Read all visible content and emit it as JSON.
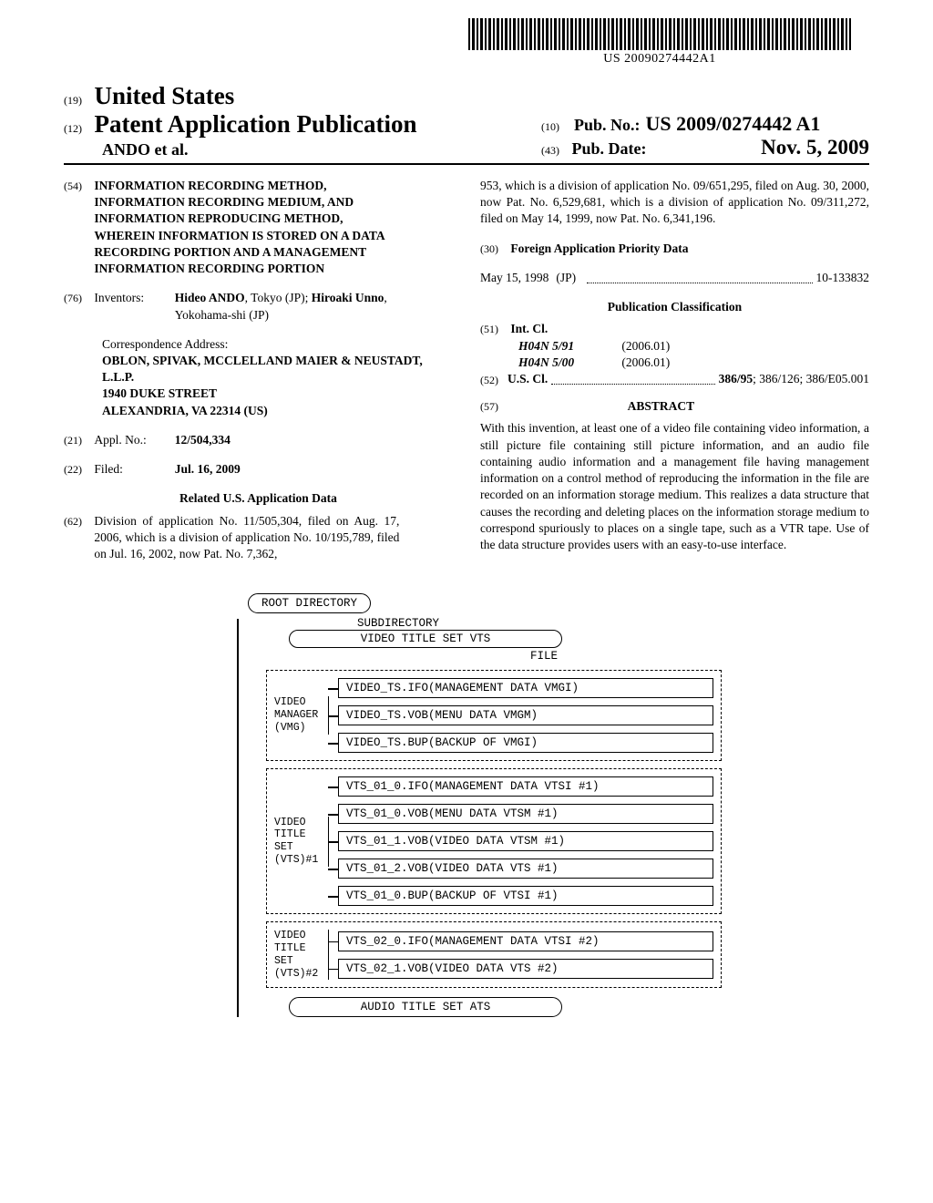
{
  "barcode_number": "US 20090274442A1",
  "header": {
    "code19": "(19)",
    "country": "United States",
    "code12": "(12)",
    "pub_title": "Patent Application Publication",
    "authors": "ANDO et al.",
    "code10": "(10)",
    "pubno_label": "Pub. No.:",
    "pubno": "US 2009/0274442 A1",
    "code43": "(43)",
    "pubdate_label": "Pub. Date:",
    "pubdate": "Nov. 5, 2009"
  },
  "left": {
    "code54": "(54)",
    "title": "INFORMATION RECORDING METHOD, INFORMATION RECORDING MEDIUM, AND INFORMATION REPRODUCING METHOD, WHEREIN INFORMATION IS STORED ON A DATA RECORDING PORTION AND A MANAGEMENT INFORMATION RECORDING PORTION",
    "code76": "(76)",
    "inventors_label": "Inventors:",
    "inventors": "Hideo ANDO, Tokyo (JP); Hiroaki Unno, Yokohama-shi (JP)",
    "corr_label": "Correspondence Address:",
    "corr1": "OBLON, SPIVAK, MCCLELLAND MAIER & NEUSTADT, L.L.P.",
    "corr2": "1940 DUKE STREET",
    "corr3": "ALEXANDRIA, VA 22314 (US)",
    "code21": "(21)",
    "applno_label": "Appl. No.:",
    "applno": "12/504,334",
    "code22": "(22)",
    "filed_label": "Filed:",
    "filed": "Jul. 16, 2009",
    "related_heading": "Related U.S. Application Data",
    "code62": "(62)",
    "related_text": "Division of application No. 11/505,304, filed on Aug. 17, 2006, which is a division of application No. 10/195,789, filed on Jul. 16, 2002, now Pat. No. 7,362,"
  },
  "right": {
    "cont_text": "953, which is a division of application No. 09/651,295, filed on Aug. 30, 2000, now Pat. No. 6,529,681, which is a division of application No. 09/311,272, filed on May 14, 1999, now Pat. No. 6,341,196.",
    "code30": "(30)",
    "foreign_heading": "Foreign Application Priority Data",
    "foreign_date": "May 15, 1998",
    "foreign_country": "(JP)",
    "foreign_num": "10-133832",
    "pubclass_heading": "Publication Classification",
    "code51": "(51)",
    "intcl_label": "Int. Cl.",
    "intcl1": "H04N 5/91",
    "intcl1_ver": "(2006.01)",
    "intcl2": "H04N 5/00",
    "intcl2_ver": "(2006.01)",
    "code52": "(52)",
    "uscl_label": "U.S. Cl.",
    "uscl_val": "386/95; 386/126; 386/E05.001",
    "code57": "(57)",
    "abstract_heading": "ABSTRACT",
    "abstract_text": "With this invention, at least one of a video file containing video information, a still picture file containing still picture information, and an audio file containing audio information and a management file having management information on a control method of reproducing the information in the file are recorded on an information storage medium. This realizes a data structure that causes the recording and deleting places on the information storage medium to correspond spuriously to places on a single tape, such as a VTR tape. Use of the data structure provides users with an easy-to-use interface."
  },
  "diagram": {
    "root": "ROOT DIRECTORY",
    "subdir_label": "SUBDIRECTORY",
    "vts_box": "VIDEO TITLE SET VTS",
    "file_label": "FILE",
    "groups": [
      {
        "label": "VIDEO\nMANAGER\n(VMG)",
        "files": [
          "VIDEO_TS.IFO(MANAGEMENT DATA VMGI)",
          "VIDEO_TS.VOB(MENU DATA VMGM)",
          "VIDEO_TS.BUP(BACKUP OF VMGI)"
        ]
      },
      {
        "label": "VIDEO\nTITLE\nSET\n(VTS)#1",
        "files": [
          "VTS_01_0.IFO(MANAGEMENT DATA VTSI #1)",
          "VTS_01_0.VOB(MENU DATA VTSM #1)",
          "VTS_01_1.VOB(VIDEO DATA VTSM #1)",
          "VTS_01_2.VOB(VIDEO DATA VTS #1)",
          "VTS_01_0.BUP(BACKUP OF VTSI #1)"
        ]
      },
      {
        "label": "VIDEO\nTITLE\nSET\n(VTS)#2",
        "files": [
          "VTS_02_0.IFO(MANAGEMENT DATA VTSI #2)",
          "VTS_02_1.VOB(VIDEO DATA VTS #2)"
        ]
      }
    ],
    "audio_box": "AUDIO TITLE SET ATS"
  }
}
